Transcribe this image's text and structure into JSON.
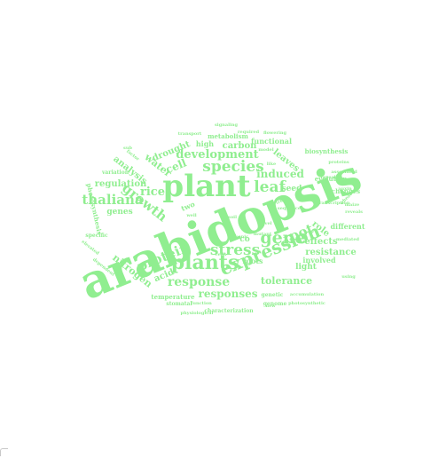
{
  "cloud": {
    "color": "#90ee90",
    "words": [
      "arabidopsis",
      "plant",
      "plants",
      "expression",
      "stress",
      "gene",
      "growth",
      "species",
      "leaf",
      "protein",
      "response",
      "thaliana",
      "root",
      "development",
      "responses",
      "tolerance",
      "rice",
      "induced",
      "cell",
      "drought",
      "analysis",
      "regulation",
      "nitrogen",
      "water",
      "acid",
      "leaves",
      "resistance",
      "effects",
      "role",
      "carbon",
      "seed",
      "genes",
      "light",
      "co",
      "roots",
      "high",
      "metabolism",
      "functional",
      "biosynthesis",
      "evolution",
      "different",
      "involved",
      "changes",
      "temperature",
      "photosynthesis",
      "variation",
      "specific",
      "genetic",
      "genome",
      "stomatal",
      "function",
      "photosynthetic",
      "characterization",
      "physiological",
      "accumulation",
      "transcription",
      "signaling",
      "transport",
      "flowering",
      "required",
      "proteins",
      "associated",
      "mediated",
      "two",
      "c",
      "new",
      "like",
      "maize",
      "reveals",
      "auxin",
      "wheat",
      "using",
      "elevated",
      "tree",
      "dependent",
      "well",
      "sub",
      "factor",
      "level",
      "soil",
      "cells",
      "arsenic",
      "mutant",
      "reveal",
      "model",
      "sequence"
    ]
  }
}
